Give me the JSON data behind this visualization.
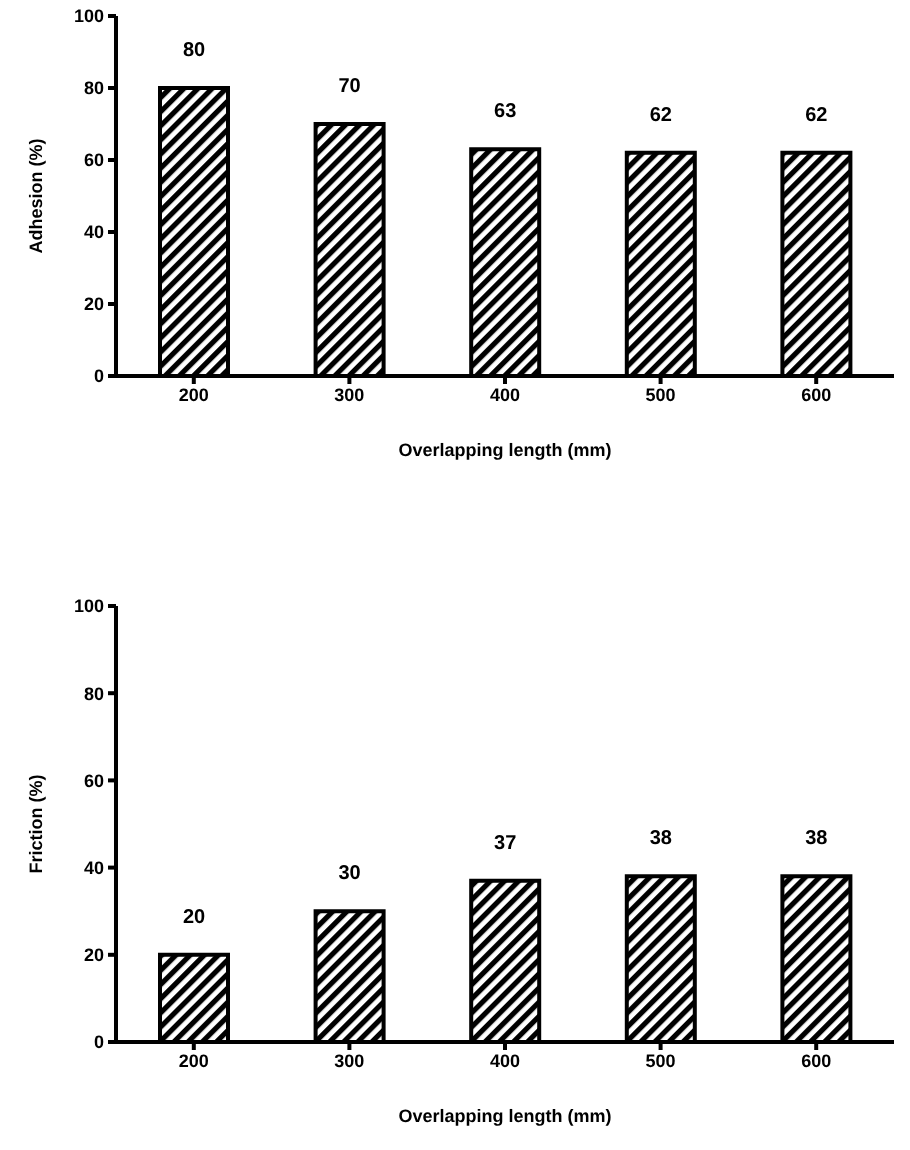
{
  "chart_data": [
    {
      "type": "bar",
      "categories": [
        "200",
        "300",
        "400",
        "500",
        "600"
      ],
      "values": [
        80,
        70,
        63,
        62,
        62
      ],
      "color": "#000000",
      "ylim": [
        0,
        100
      ],
      "yticks": [
        0,
        20,
        40,
        60,
        80,
        100
      ],
      "ylabel": "Adhesion (%)",
      "xlabel": "Overlapping length (mm)",
      "data_labels": true,
      "grid": false,
      "legend": false
    },
    {
      "type": "bar",
      "categories": [
        "200",
        "300",
        "400",
        "500",
        "600"
      ],
      "values": [
        20,
        30,
        37,
        38,
        38
      ],
      "color": "#000000",
      "ylim": [
        0,
        100
      ],
      "yticks": [
        0,
        20,
        40,
        60,
        80,
        100
      ],
      "ylabel": "Friction (%)",
      "xlabel": "Overlapping length (mm)",
      "data_labels": true,
      "grid": false,
      "legend": false
    }
  ]
}
